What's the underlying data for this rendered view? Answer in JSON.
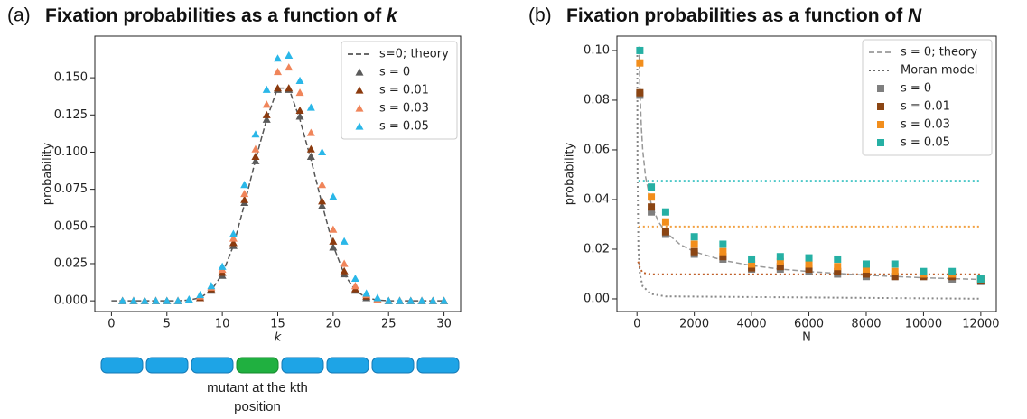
{
  "chart_data": [
    {
      "type": "scatter",
      "panel_label": "(a)",
      "title": "Fixation probabilities as a function of k",
      "xlabel": "k",
      "ylabel": "probability",
      "marker": "triangle",
      "xlim": [
        -1.5,
        31.5
      ],
      "ylim": [
        -0.0072,
        0.178
      ],
      "xticks": [
        0,
        5,
        10,
        15,
        20,
        25,
        30
      ],
      "yticks": [
        {
          "value": 0,
          "label": "0.000"
        },
        {
          "value": 0.025,
          "label": "0.025"
        },
        {
          "value": 0.05,
          "label": "0.050"
        },
        {
          "value": 0.075,
          "label": "0.075"
        },
        {
          "value": 0.1,
          "label": "0.100"
        },
        {
          "value": 0.125,
          "label": "0.125"
        },
        {
          "value": 0.15,
          "label": "0.150"
        }
      ],
      "lines": [
        {
          "name": "s=0; theory",
          "color": "#555555",
          "style": "dashed",
          "x": [
            0,
            1,
            2,
            3,
            4,
            5,
            6,
            7,
            8,
            9,
            10,
            11,
            12,
            13,
            14,
            15,
            16,
            17,
            18,
            19,
            20,
            21,
            22,
            23,
            24,
            25,
            26,
            27,
            28,
            29,
            30
          ],
          "values": [
            0,
            0,
            0,
            0,
            0,
            0,
            0,
            0.0005,
            0.002,
            0.007,
            0.018,
            0.037,
            0.065,
            0.095,
            0.122,
            0.143,
            0.143,
            0.122,
            0.095,
            0.065,
            0.037,
            0.018,
            0.007,
            0.002,
            0.0005,
            0,
            0,
            0,
            0,
            0,
            0
          ]
        }
      ],
      "x": [
        1,
        2,
        3,
        4,
        5,
        6,
        7,
        8,
        9,
        10,
        11,
        12,
        13,
        14,
        15,
        16,
        17,
        18,
        19,
        20,
        21,
        22,
        23,
        24,
        25,
        26,
        27,
        28,
        29,
        30
      ],
      "series": [
        {
          "name": "s = 0",
          "color": "#5a5a5a",
          "values": [
            0,
            0,
            0,
            0,
            0,
            0,
            0.0005,
            0.002,
            0.007,
            0.017,
            0.037,
            0.066,
            0.094,
            0.122,
            0.142,
            0.142,
            0.124,
            0.097,
            0.064,
            0.036,
            0.018,
            0.007,
            0.002,
            0.0005,
            0,
            0,
            0,
            0,
            0,
            0
          ]
        },
        {
          "name": "s = 0.01",
          "color": "#8b3a0e",
          "values": [
            0,
            0,
            0,
            0,
            0,
            0,
            0.0005,
            0.002,
            0.008,
            0.019,
            0.039,
            0.068,
            0.097,
            0.125,
            0.143,
            0.143,
            0.128,
            0.102,
            0.067,
            0.04,
            0.02,
            0.008,
            0.003,
            0.001,
            0,
            0,
            0,
            0,
            0,
            0
          ]
        },
        {
          "name": "s = 0.03",
          "color": "#f0855a",
          "values": [
            0,
            0,
            0,
            0,
            0,
            0,
            0.0008,
            0.003,
            0.009,
            0.021,
            0.042,
            0.072,
            0.102,
            0.132,
            0.154,
            0.157,
            0.14,
            0.113,
            0.078,
            0.048,
            0.025,
            0.01,
            0.004,
            0.001,
            0,
            0,
            0,
            0,
            0,
            0
          ]
        },
        {
          "name": "s = 0.05",
          "color": "#2ab7e8",
          "values": [
            0,
            0,
            0,
            0,
            0,
            0,
            0.001,
            0.004,
            0.01,
            0.023,
            0.045,
            0.078,
            0.112,
            0.142,
            0.163,
            0.165,
            0.148,
            0.13,
            0.1,
            0.07,
            0.04,
            0.015,
            0.005,
            0.002,
            0,
            0,
            0,
            0,
            0,
            0
          ]
        }
      ],
      "annotation": [
        "mutant at the kth",
        "position"
      ]
    },
    {
      "type": "scatter",
      "panel_label": "(b)",
      "title": "Fixation probabilities as a function of N",
      "xlabel": "N",
      "ylabel": "probability",
      "marker": "square",
      "xlim": [
        -700,
        12540
      ],
      "ylim": [
        -0.0051,
        0.1058
      ],
      "xticks": [
        0,
        2000,
        4000,
        6000,
        8000,
        10000,
        12000
      ],
      "yticks": [
        {
          "value": 0,
          "label": "0.00"
        },
        {
          "value": 0.02,
          "label": "0.02"
        },
        {
          "value": 0.04,
          "label": "0.04"
        },
        {
          "value": 0.06,
          "label": "0.06"
        },
        {
          "value": 0.08,
          "label": "0.08"
        },
        {
          "value": 0.1,
          "label": "0.10"
        }
      ],
      "lines": [
        {
          "name": "s = 0; theory",
          "color": "#999999",
          "style": "dashed",
          "x": [
            70,
            100,
            150,
            200,
            300,
            500,
            750,
            1000,
            1500,
            2000,
            3000,
            4000,
            5000,
            6000,
            8000,
            10000,
            12000
          ],
          "values": [
            0.1016,
            0.085,
            0.0694,
            0.0601,
            0.0491,
            0.038,
            0.031,
            0.0269,
            0.0219,
            0.019,
            0.0155,
            0.0134,
            0.012,
            0.011,
            0.0095,
            0.0085,
            0.0078
          ]
        }
      ],
      "moran": {
        "name": "Moran model",
        "color": "#555555",
        "curves": [
          {
            "color": "#888888",
            "x": [
              10,
              20,
              50,
              100,
              200,
              500,
              1000,
              12000
            ],
            "values": [
              0.1,
              0.05,
              0.02,
              0.01,
              0.005,
              0.002,
              0.001,
              8e-05
            ]
          },
          {
            "color": "#c0602a",
            "x": [
              40,
              100,
              200,
              500,
              12000
            ],
            "values": [
              0.015,
              0.0125,
              0.0105,
              0.0099,
              0.0099
            ]
          },
          {
            "color": "#f2a040",
            "x": [
              50,
              12000
            ],
            "values": [
              0.0291,
              0.0291
            ]
          },
          {
            "color": "#4cc8c8",
            "x": [
              50,
              12000
            ],
            "values": [
              0.0476,
              0.0476
            ]
          }
        ]
      },
      "x": [
        100,
        500,
        1000,
        2000,
        3000,
        4000,
        5000,
        6000,
        7000,
        8000,
        9000,
        10000,
        11000,
        12000
      ],
      "series": [
        {
          "name": "s = 0",
          "color": "#7f7f7f",
          "values": [
            0.082,
            0.035,
            0.026,
            0.018,
            0.016,
            0.012,
            0.012,
            0.011,
            0.01,
            0.009,
            0.009,
            0.009,
            0.008,
            0.007
          ]
        },
        {
          "name": "s = 0.01",
          "color": "#8b4513",
          "values": [
            0.083,
            0.037,
            0.027,
            0.019,
            0.017,
            0.0125,
            0.013,
            0.012,
            0.011,
            0.01,
            0.009,
            0.009,
            0.009,
            0.0075
          ]
        },
        {
          "name": "s = 0.03",
          "color": "#f28e1c",
          "values": [
            0.095,
            0.041,
            0.031,
            0.022,
            0.019,
            0.014,
            0.015,
            0.014,
            0.013,
            0.012,
            0.011,
            0.01,
            0.01,
            0.008
          ]
        },
        {
          "name": "s = 0.05",
          "color": "#26b0a4",
          "values": [
            0.1,
            0.045,
            0.035,
            0.025,
            0.022,
            0.016,
            0.017,
            0.0165,
            0.016,
            0.014,
            0.014,
            0.011,
            0.011,
            0.008
          ]
        }
      ]
    }
  ]
}
